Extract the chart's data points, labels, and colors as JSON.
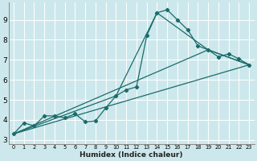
{
  "xlabel": "Humidex (Indice chaleur)",
  "bg_color": "#cde8ec",
  "line_color": "#1a6b6b",
  "grid_color": "#ffffff",
  "xlim": [
    -0.5,
    23.5
  ],
  "ylim": [
    2.8,
    9.85
  ],
  "xticks": [
    0,
    1,
    2,
    3,
    4,
    5,
    6,
    7,
    8,
    9,
    10,
    11,
    12,
    13,
    14,
    15,
    16,
    17,
    18,
    19,
    20,
    21,
    22,
    23
  ],
  "yticks": [
    3,
    4,
    5,
    6,
    7,
    8,
    9
  ],
  "main_x": [
    0,
    1,
    2,
    3,
    4,
    5,
    6,
    7,
    8,
    9,
    10,
    11,
    12,
    13,
    14,
    15,
    16,
    17,
    18,
    19,
    20,
    21,
    22,
    23
  ],
  "main_y": [
    3.3,
    3.85,
    3.7,
    4.2,
    4.2,
    4.1,
    4.3,
    3.9,
    3.95,
    4.6,
    5.2,
    5.5,
    5.65,
    8.2,
    9.35,
    9.5,
    9.0,
    8.5,
    7.7,
    7.5,
    7.15,
    7.3,
    7.05,
    6.75
  ],
  "line2_x": [
    0,
    10,
    14,
    19,
    23
  ],
  "line2_y": [
    3.3,
    5.2,
    9.35,
    7.5,
    6.75
  ],
  "line3_x": [
    0,
    19,
    23
  ],
  "line3_y": [
    3.3,
    7.5,
    6.75
  ],
  "line4_x": [
    0,
    23
  ],
  "line4_y": [
    3.3,
    6.75
  ]
}
